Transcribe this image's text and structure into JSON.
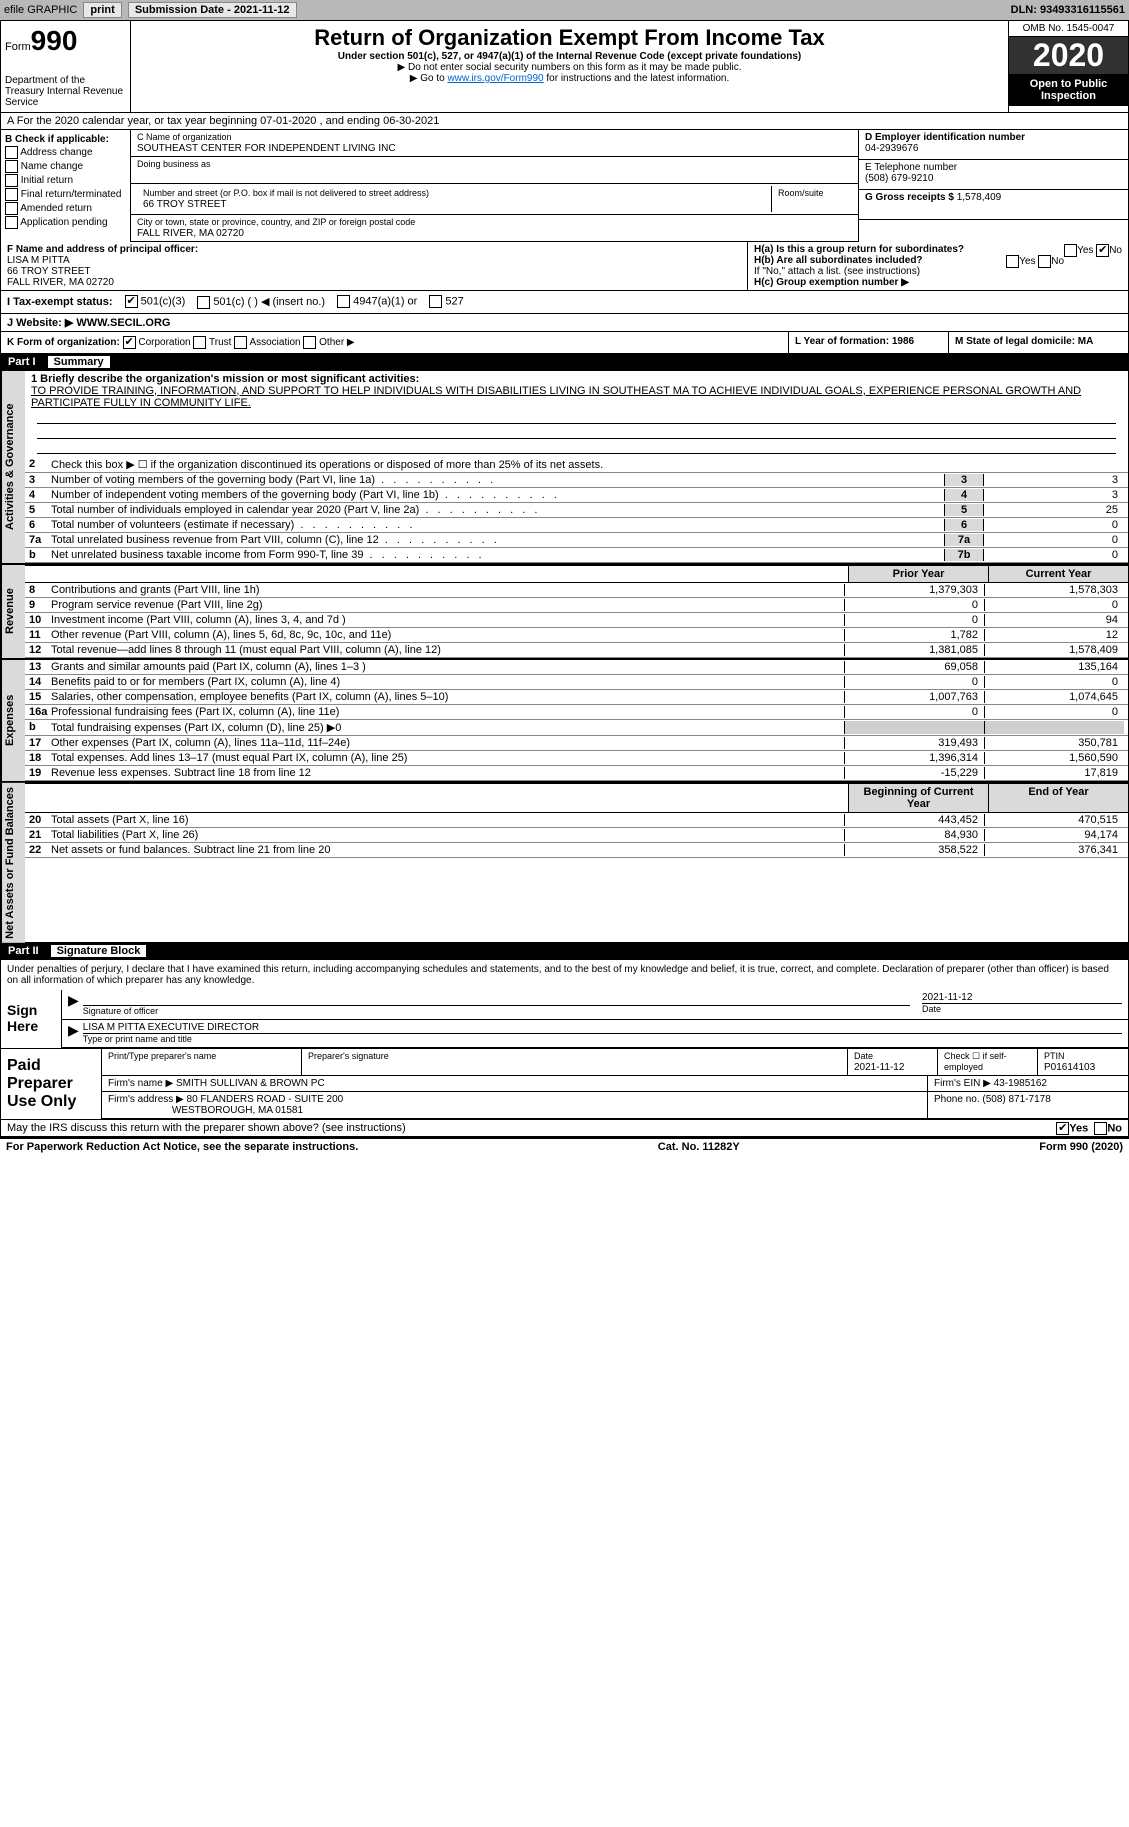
{
  "topbar": {
    "efile_label": "efile GRAPHIC",
    "print_btn": "print",
    "sub_date_label": "Submission Date - ",
    "sub_date": "2021-11-12",
    "dln_label": "DLN: ",
    "dln": "93493316115561"
  },
  "header": {
    "form_label": "Form",
    "form_num": "990",
    "dept": "Department of the Treasury Internal Revenue Service",
    "title": "Return of Organization Exempt From Income Tax",
    "sub": "Under section 501(c), 527, or 4947(a)(1) of the Internal Revenue Code (except private foundations)",
    "instr1": "▶ Do not enter social security numbers on this form as it may be made public.",
    "instr2_pre": "▶ Go to ",
    "instr2_link": "www.irs.gov/Form990",
    "instr2_post": " for instructions and the latest information.",
    "omb": "OMB No. 1545-0047",
    "year": "2020",
    "open": "Open to Public Inspection"
  },
  "row_a": "A For the 2020 calendar year, or tax year beginning 07-01-2020   , and ending 06-30-2021",
  "col_b": {
    "header": "B Check if applicable:",
    "addr": "Address change",
    "name": "Name change",
    "initial": "Initial return",
    "final": "Final return/terminated",
    "amended": "Amended return",
    "pending": "Application pending"
  },
  "org": {
    "c_label": "C Name of organization",
    "name": "SOUTHEAST CENTER FOR INDEPENDENT LIVING INC",
    "dba_label": "Doing business as",
    "street_label": "Number and street (or P.O. box if mail is not delivered to street address)",
    "room_label": "Room/suite",
    "street": "66 TROY STREET",
    "city_label": "City or town, state or province, country, and ZIP or foreign postal code",
    "city": "FALL RIVER, MA  02720"
  },
  "right": {
    "d_label": "D Employer identification number",
    "ein": "04-2939676",
    "e_label": "E Telephone number",
    "phone": "(508) 679-9210",
    "g_label": "G Gross receipts $ ",
    "gross": "1,578,409"
  },
  "f": {
    "label": "F Name and address of principal officer:",
    "name": "LISA M PITTA",
    "street": "66 TROY STREET",
    "city": "FALL RIVER, MA  02720"
  },
  "h": {
    "a": "H(a)  Is this a group return for subordinates?",
    "b": "H(b)  Are all subordinates included?",
    "note": "If \"No,\" attach a list. (see instructions)",
    "c": "H(c)  Group exemption number ▶",
    "yes": "Yes",
    "no": "No"
  },
  "tax_status": {
    "i": "I  Tax-exempt status:",
    "c3": "501(c)(3)",
    "c": "501(c) (  ) ◀ (insert no.)",
    "a1": "4947(a)(1) or",
    "s527": "527"
  },
  "j": {
    "label": "J  Website: ▶ ",
    "val": "WWW.SECIL.ORG"
  },
  "k": {
    "label": "K Form of organization:",
    "corp": "Corporation",
    "trust": "Trust",
    "assoc": "Association",
    "other": "Other ▶",
    "l": "L Year of formation: 1986",
    "m": "M State of legal domicile: MA"
  },
  "part1": {
    "num": "Part I",
    "title": "Summary"
  },
  "mission": {
    "line1_label": "1  Briefly describe the organization's mission or most significant activities:",
    "text": "TO PROVIDE TRAINING, INFORMATION, AND SUPPORT TO HELP INDIVIDUALS WITH DISABILITIES LIVING IN SOUTHEAST MA TO ACHIEVE INDIVIDUAL GOALS, EXPERIENCE PERSONAL GROWTH AND PARTICIPATE FULLY IN COMMUNITY LIFE."
  },
  "vtabs": {
    "gov": "Activities & Governance",
    "rev": "Revenue",
    "exp": "Expenses",
    "net": "Net Assets or Fund Balances"
  },
  "lines_gov": [
    {
      "n": "2",
      "t": "Check this box ▶ ☐ if the organization discontinued its operations or disposed of more than 25% of its net assets."
    },
    {
      "n": "3",
      "t": "Number of voting members of the governing body (Part VI, line 1a)",
      "box": "3",
      "val": "3"
    },
    {
      "n": "4",
      "t": "Number of independent voting members of the governing body (Part VI, line 1b)",
      "box": "4",
      "val": "3"
    },
    {
      "n": "5",
      "t": "Total number of individuals employed in calendar year 2020 (Part V, line 2a)",
      "box": "5",
      "val": "25"
    },
    {
      "n": "6",
      "t": "Total number of volunteers (estimate if necessary)",
      "box": "6",
      "val": "0"
    },
    {
      "n": "7a",
      "t": "Total unrelated business revenue from Part VIII, column (C), line 12",
      "box": "7a",
      "val": "0"
    },
    {
      "n": "b",
      "t": "Net unrelated business taxable income from Form 990-T, line 39",
      "box": "7b",
      "val": "0"
    }
  ],
  "col_hdrs": {
    "prior": "Prior Year",
    "current": "Current Year",
    "beg": "Beginning of Current Year",
    "end": "End of Year"
  },
  "lines_rev": [
    {
      "n": "8",
      "t": "Contributions and grants (Part VIII, line 1h)",
      "v1": "1,379,303",
      "v2": "1,578,303"
    },
    {
      "n": "9",
      "t": "Program service revenue (Part VIII, line 2g)",
      "v1": "0",
      "v2": "0"
    },
    {
      "n": "10",
      "t": "Investment income (Part VIII, column (A), lines 3, 4, and 7d )",
      "v1": "0",
      "v2": "94"
    },
    {
      "n": "11",
      "t": "Other revenue (Part VIII, column (A), lines 5, 6d, 8c, 9c, 10c, and 11e)",
      "v1": "1,782",
      "v2": "12"
    },
    {
      "n": "12",
      "t": "Total revenue—add lines 8 through 11 (must equal Part VIII, column (A), line 12)",
      "v1": "1,381,085",
      "v2": "1,578,409"
    }
  ],
  "lines_exp": [
    {
      "n": "13",
      "t": "Grants and similar amounts paid (Part IX, column (A), lines 1–3 )",
      "v1": "69,058",
      "v2": "135,164"
    },
    {
      "n": "14",
      "t": "Benefits paid to or for members (Part IX, column (A), line 4)",
      "v1": "0",
      "v2": "0"
    },
    {
      "n": "15",
      "t": "Salaries, other compensation, employee benefits (Part IX, column (A), lines 5–10)",
      "v1": "1,007,763",
      "v2": "1,074,645"
    },
    {
      "n": "16a",
      "t": "Professional fundraising fees (Part IX, column (A), line 11e)",
      "v1": "0",
      "v2": "0"
    },
    {
      "n": "b",
      "t": "Total fundraising expenses (Part IX, column (D), line 25) ▶0",
      "shade": true
    },
    {
      "n": "17",
      "t": "Other expenses (Part IX, column (A), lines 11a–11d, 11f–24e)",
      "v1": "319,493",
      "v2": "350,781"
    },
    {
      "n": "18",
      "t": "Total expenses. Add lines 13–17 (must equal Part IX, column (A), line 25)",
      "v1": "1,396,314",
      "v2": "1,560,590"
    },
    {
      "n": "19",
      "t": "Revenue less expenses. Subtract line 18 from line 12",
      "v1": "-15,229",
      "v2": "17,819"
    }
  ],
  "lines_net": [
    {
      "n": "20",
      "t": "Total assets (Part X, line 16)",
      "v1": "443,452",
      "v2": "470,515"
    },
    {
      "n": "21",
      "t": "Total liabilities (Part X, line 26)",
      "v1": "84,930",
      "v2": "94,174"
    },
    {
      "n": "22",
      "t": "Net assets or fund balances. Subtract line 21 from line 20",
      "v1": "358,522",
      "v2": "376,341"
    }
  ],
  "part2": {
    "num": "Part II",
    "title": "Signature Block"
  },
  "sig": {
    "decl": "Under penalties of perjury, I declare that I have examined this return, including accompanying schedules and statements, and to the best of my knowledge and belief, it is true, correct, and complete. Declaration of preparer (other than officer) is based on all information of which preparer has any knowledge.",
    "sign_here": "Sign Here",
    "sig_officer": "Signature of officer",
    "date": "Date",
    "sig_date": "2021-11-12",
    "name_title": "LISA M PITTA  EXECUTIVE DIRECTOR",
    "type_label": "Type or print name and title"
  },
  "prep": {
    "label": "Paid Preparer Use Only",
    "print_name": "Print/Type preparer's name",
    "sig": "Preparer's signature",
    "date_label": "Date",
    "date": "2021-11-12",
    "check": "Check ☐ if self-employed",
    "ptin_label": "PTIN",
    "ptin": "P01614103",
    "firm_name_label": "Firm's name    ▶ ",
    "firm_name": "SMITH SULLIVAN & BROWN PC",
    "firm_ein_label": "Firm's EIN ▶ ",
    "firm_ein": "43-1985162",
    "firm_addr_label": "Firm's address ▶ ",
    "firm_addr": "80 FLANDERS ROAD - SUITE 200",
    "firm_city": "WESTBOROUGH, MA  01581",
    "phone_label": "Phone no. ",
    "phone": "(508) 871-7178"
  },
  "discuss": "May the IRS discuss this return with the preparer shown above? (see instructions)",
  "footer": {
    "pra": "For Paperwork Reduction Act Notice, see the separate instructions.",
    "cat": "Cat. No. 11282Y",
    "form": "Form 990 (2020)"
  }
}
